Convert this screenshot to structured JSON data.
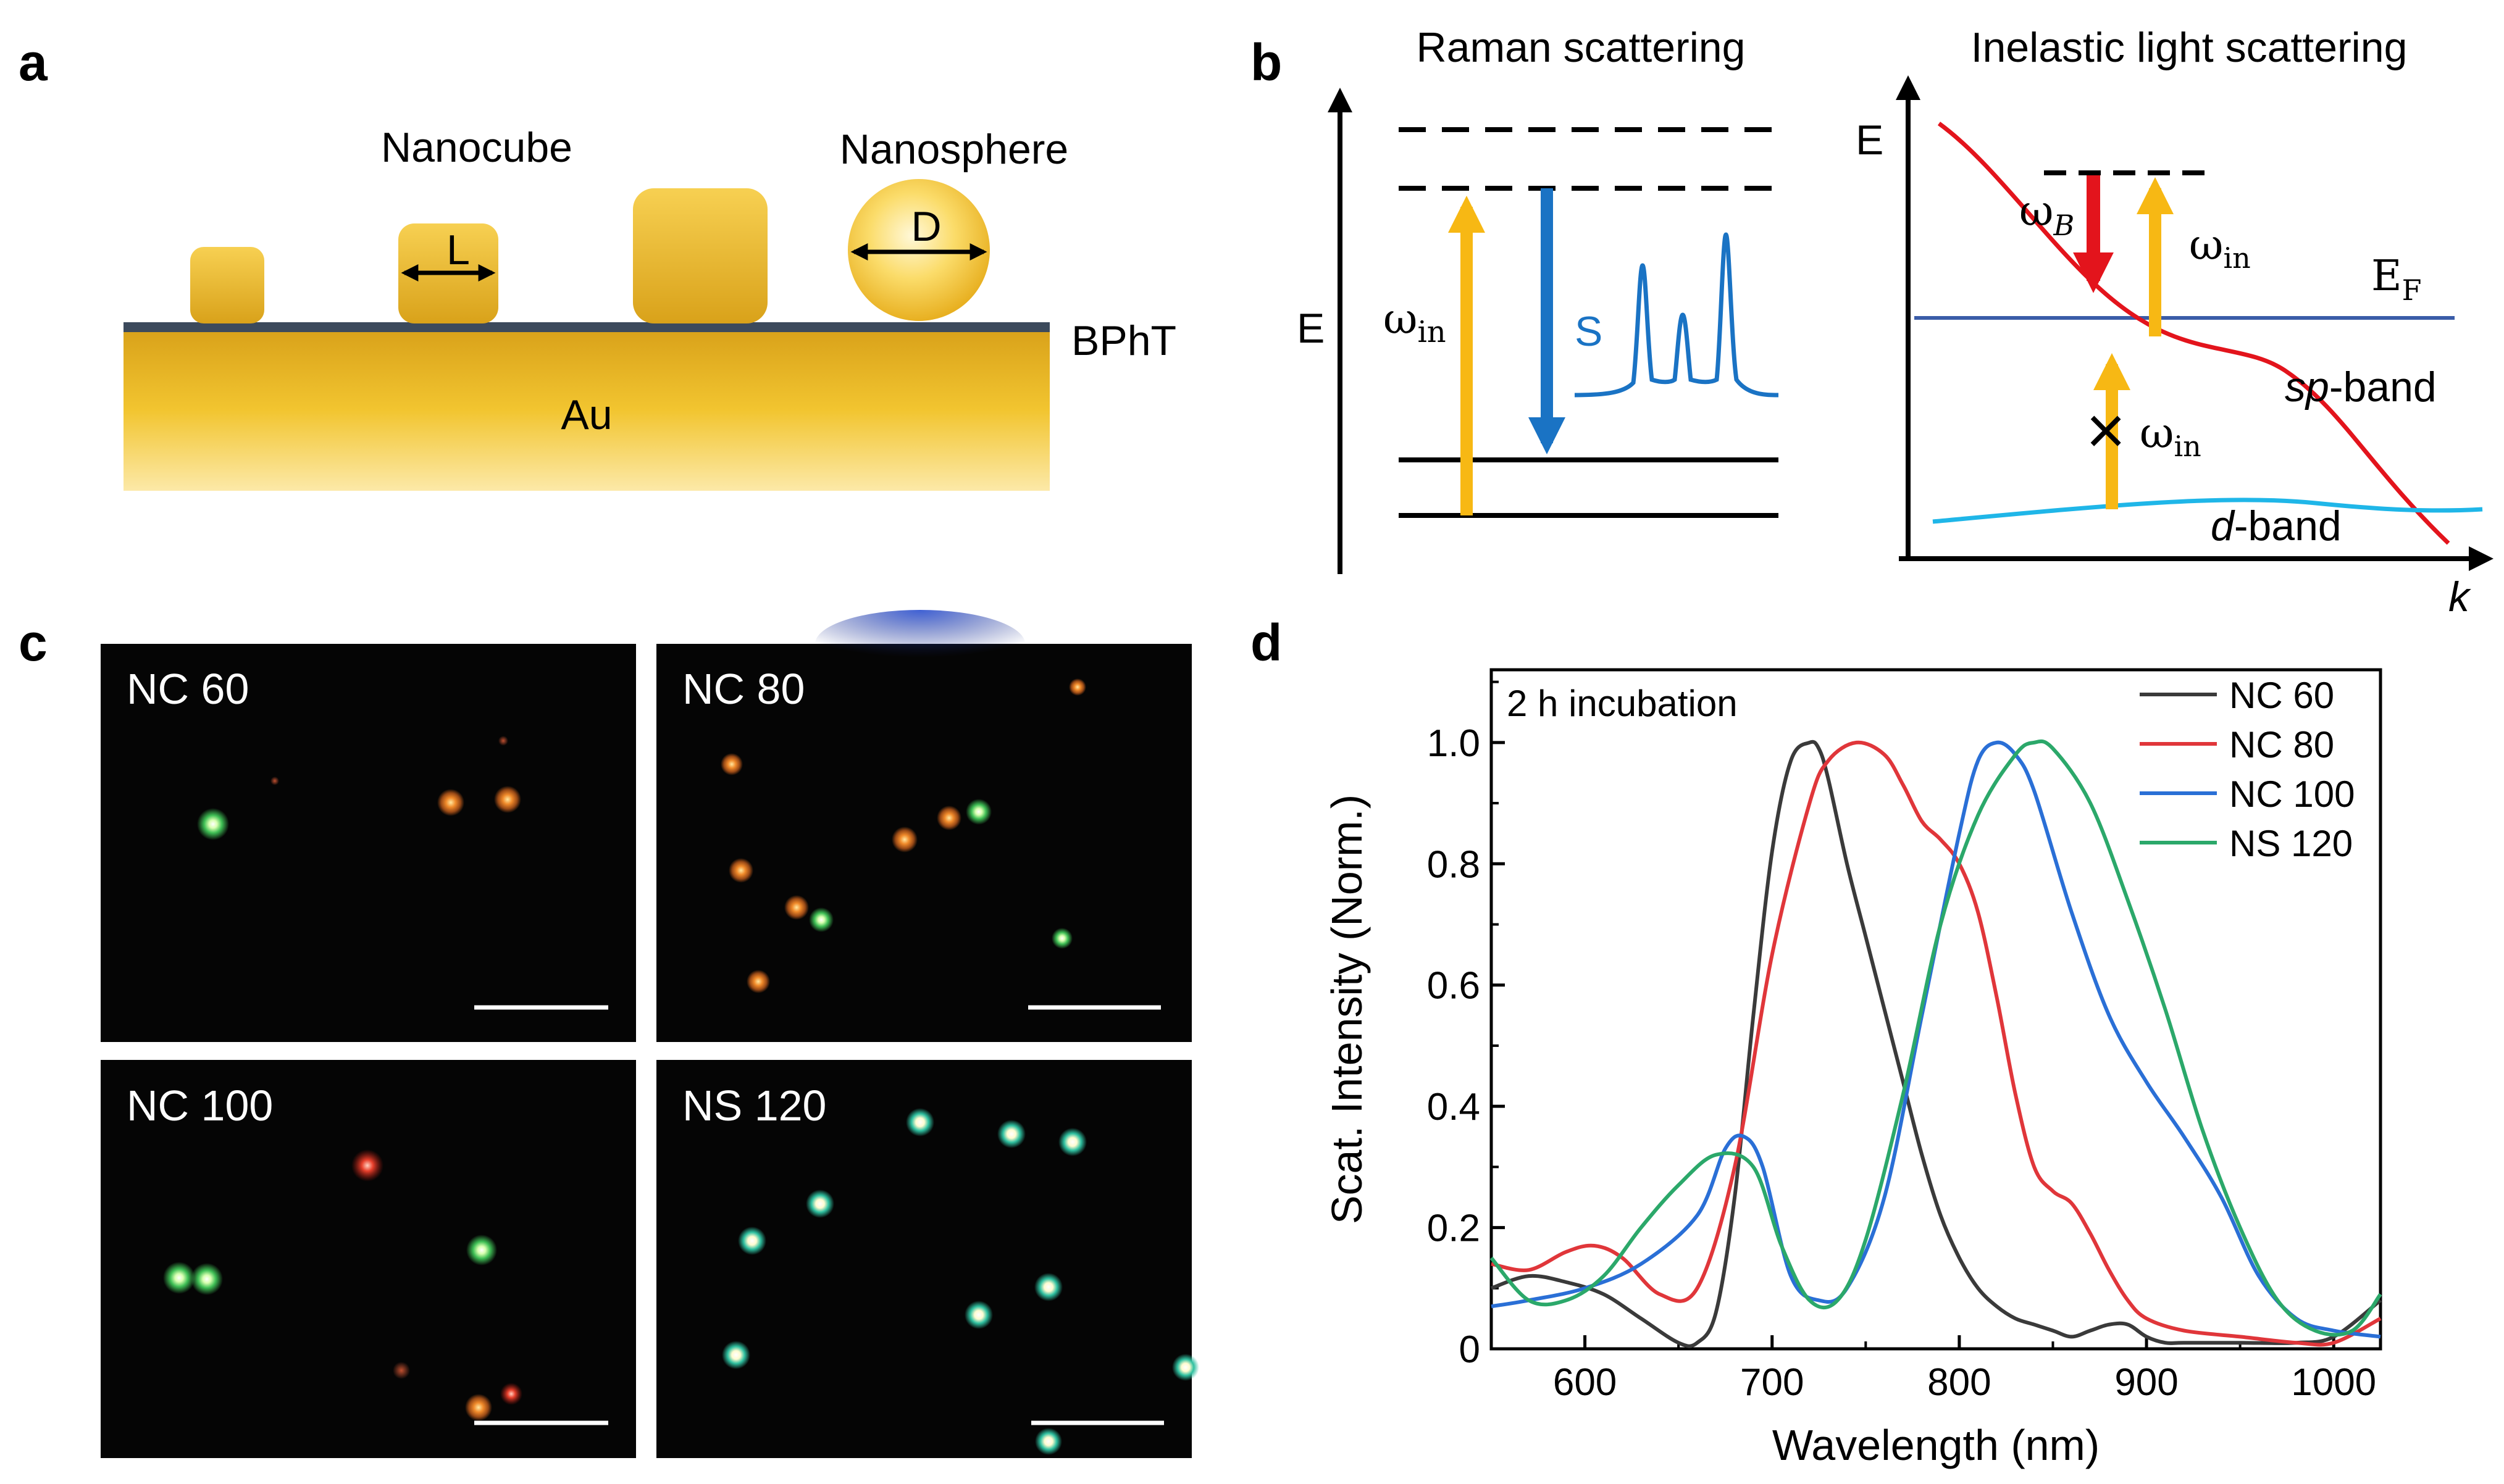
{
  "panel_letters": {
    "a": "a",
    "b": "b",
    "c": "c",
    "d": "d"
  },
  "panel_a": {
    "nanocube_label": "Nanocube",
    "nanosphere_label": "Nanosphere",
    "edge_label": "L",
    "diameter_label": "D",
    "layer_label": "BPhT",
    "substrate_label": "Au",
    "colors": {
      "gold_light": "#fbe38a",
      "gold": "#f2c530",
      "gold_dark": "#d9a21a",
      "layer": "#3c4a5c"
    }
  },
  "panel_b": {
    "raman_title": "Raman scattering",
    "raman_axis": "E",
    "omega_in": "ω",
    "in_sub": "in",
    "stokes_label": "S",
    "ils_title": "Inelastic light scattering",
    "ils_axis_y": "E",
    "ils_axis_x": "k",
    "fermi_label": "E",
    "fermi_sub": "F",
    "omega_b": "ω",
    "b_sub": "B",
    "blocked_mark": "×",
    "sp_italic": "sp",
    "d_italic": "d",
    "band_suffix": "-band",
    "colors": {
      "excite": "#f7b814",
      "stokes": "#1a73c4",
      "sp_band": "#e3141c",
      "d_band": "#1fb6e8",
      "fermi": "#3a5ca8"
    }
  },
  "panel_c": {
    "images": [
      {
        "label": "NC 60"
      },
      {
        "label": "NC 80"
      },
      {
        "label": "NC 100"
      },
      {
        "label": "NS 120"
      }
    ]
  },
  "chart_data": {
    "type": "line",
    "annotation": "2 h incubation",
    "xlabel": "Wavelength (nm)",
    "ylabel": "Scat. Intensity (Norm.)",
    "xlim": [
      550,
      1025
    ],
    "ylim": [
      0,
      1.12
    ],
    "xticks": [
      600,
      700,
      800,
      900,
      1000
    ],
    "yticks": [
      0,
      0.2,
      0.4,
      0.6,
      0.8,
      1.0
    ],
    "ytick_labels": [
      "0",
      "0.2",
      "0.4",
      "0.6",
      "0.8",
      "1.0"
    ],
    "legend_position": "top-right",
    "series": [
      {
        "name": "NC 60",
        "color": "#3a3a3a",
        "x": [
          550,
          570,
          590,
          610,
          630,
          650,
          660,
          670,
          680,
          690,
          700,
          710,
          720,
          725,
          730,
          740,
          750,
          760,
          770,
          780,
          790,
          800,
          810,
          820,
          830,
          840,
          850,
          860,
          870,
          880,
          890,
          900,
          910,
          920,
          950,
          980,
          1000,
          1025
        ],
        "y": [
          0.1,
          0.12,
          0.11,
          0.09,
          0.05,
          0.01,
          0.01,
          0.06,
          0.25,
          0.55,
          0.82,
          0.97,
          1.0,
          0.99,
          0.94,
          0.8,
          0.68,
          0.56,
          0.44,
          0.32,
          0.22,
          0.15,
          0.1,
          0.07,
          0.05,
          0.04,
          0.03,
          0.02,
          0.03,
          0.04,
          0.04,
          0.02,
          0.01,
          0.01,
          0.01,
          0.01,
          0.02,
          0.08
        ]
      },
      {
        "name": "NC 80",
        "color": "#e0363a",
        "x": [
          550,
          570,
          590,
          605,
          620,
          640,
          660,
          680,
          700,
          720,
          730,
          745,
          760,
          770,
          780,
          790,
          800,
          810,
          820,
          830,
          840,
          850,
          860,
          870,
          880,
          890,
          900,
          920,
          950,
          980,
          1000,
          1025
        ],
        "y": [
          0.14,
          0.13,
          0.16,
          0.17,
          0.15,
          0.09,
          0.1,
          0.3,
          0.65,
          0.9,
          0.97,
          1.0,
          0.98,
          0.93,
          0.87,
          0.84,
          0.8,
          0.72,
          0.58,
          0.42,
          0.3,
          0.26,
          0.24,
          0.19,
          0.13,
          0.08,
          0.05,
          0.03,
          0.02,
          0.01,
          0.01,
          0.05
        ]
      },
      {
        "name": "NC 100",
        "color": "#2a6fd6",
        "x": [
          550,
          570,
          600,
          630,
          660,
          675,
          685,
          695,
          710,
          725,
          740,
          760,
          780,
          800,
          810,
          820,
          830,
          840,
          860,
          880,
          900,
          920,
          940,
          960,
          980,
          1000,
          1025
        ],
        "y": [
          0.07,
          0.08,
          0.1,
          0.14,
          0.22,
          0.33,
          0.35,
          0.3,
          0.12,
          0.08,
          0.1,
          0.25,
          0.55,
          0.85,
          0.97,
          1.0,
          0.98,
          0.92,
          0.72,
          0.55,
          0.44,
          0.35,
          0.25,
          0.12,
          0.05,
          0.03,
          0.02
        ]
      },
      {
        "name": "NS 120",
        "color": "#2ba86a",
        "x": [
          550,
          570,
          590,
          610,
          630,
          650,
          670,
          690,
          705,
          720,
          735,
          750,
          770,
          790,
          810,
          830,
          840,
          850,
          870,
          890,
          910,
          930,
          950,
          970,
          990,
          1010,
          1025
        ],
        "y": [
          0.15,
          0.08,
          0.08,
          0.12,
          0.2,
          0.27,
          0.32,
          0.3,
          0.17,
          0.08,
          0.08,
          0.18,
          0.42,
          0.7,
          0.88,
          0.98,
          1.0,
          0.99,
          0.9,
          0.74,
          0.56,
          0.36,
          0.2,
          0.08,
          0.03,
          0.03,
          0.09
        ]
      }
    ]
  }
}
